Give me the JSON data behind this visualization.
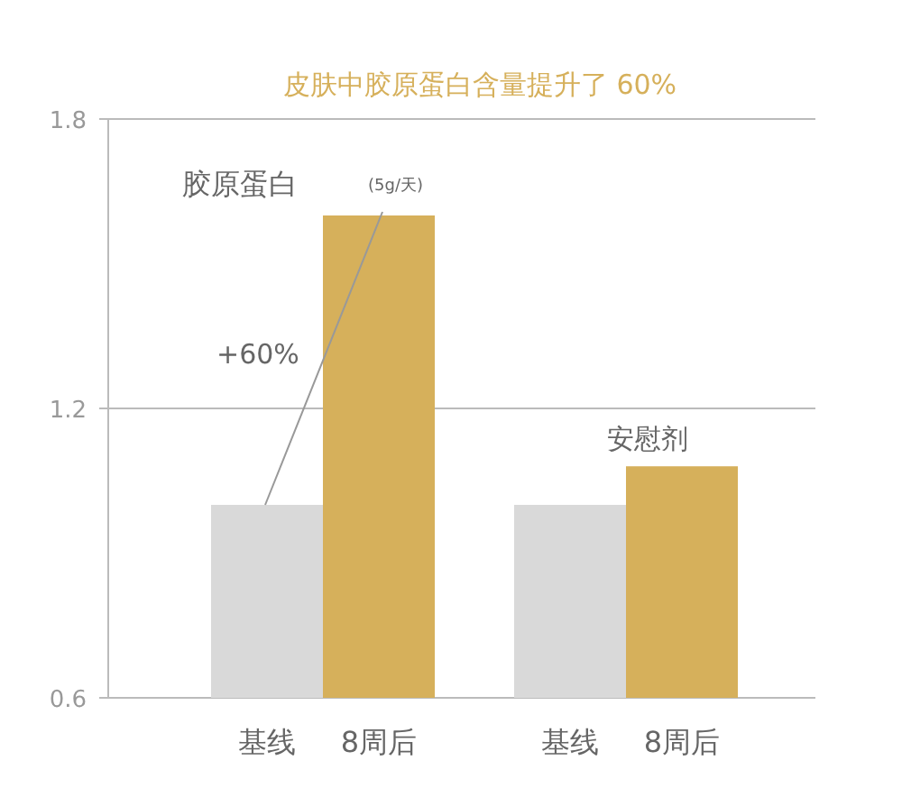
{
  "chart_data": {
    "type": "bar",
    "title": "皮肤中胶原蛋白含量提升了 60%",
    "categories": [
      "基线",
      "8周后",
      "基线",
      "8周后"
    ],
    "values": [
      1.0,
      1.6,
      1.0,
      1.08
    ],
    "colors": [
      "#d9d9d9",
      "#d6b05b",
      "#d9d9d9",
      "#d6b05b"
    ],
    "ylim": [
      0.6,
      1.8
    ],
    "yticks": [
      0.6,
      1.2,
      1.8
    ],
    "grid": "y",
    "annotations": [
      "胶原蛋白",
      "(5g/天)",
      "+60%",
      "安慰剂"
    ]
  }
}
